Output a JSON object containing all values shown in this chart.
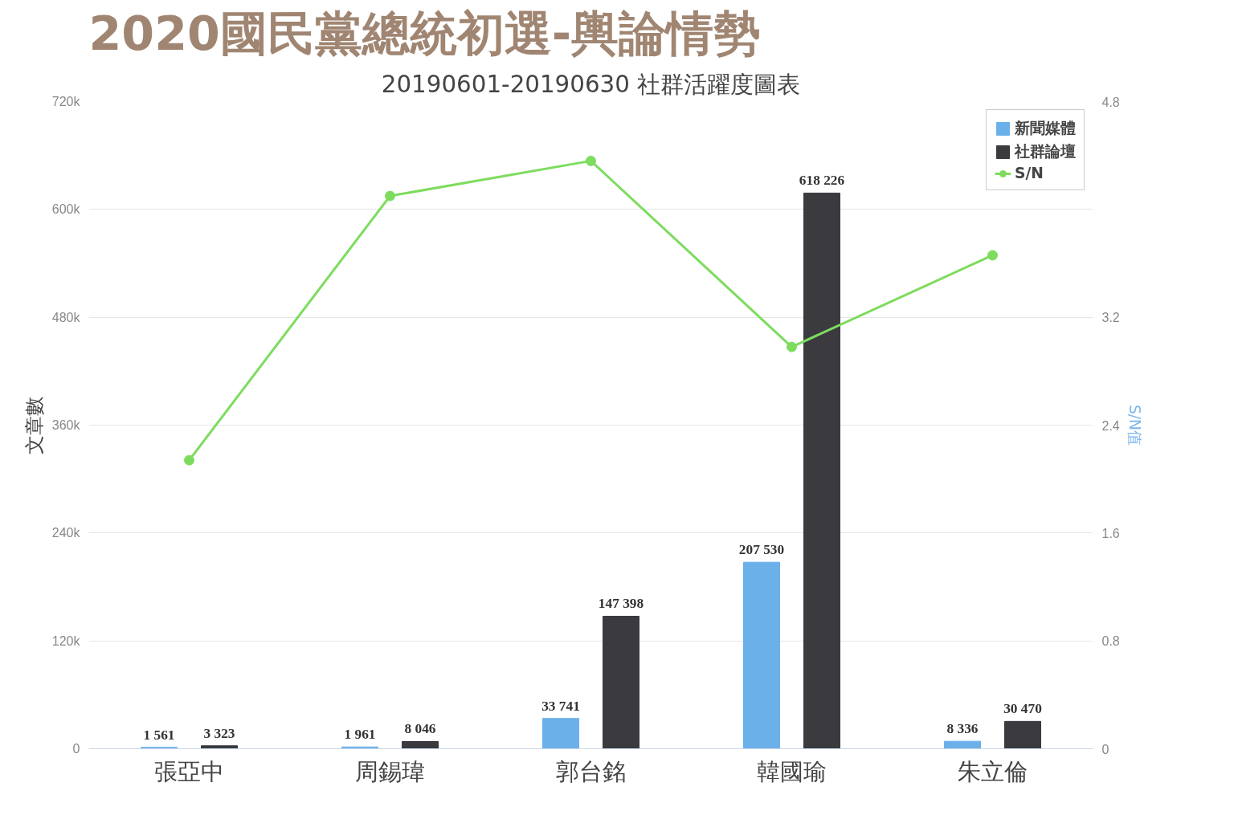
{
  "chart_data": {
    "type": "bar",
    "title": "2020國民黨總統初選-輿論情勢",
    "subtitle": "20190601-20190630 社群活躍度圖表",
    "ylabel": "文章數",
    "y2label": "S/N值",
    "categories": [
      "張亞中",
      "周錫瑋",
      "郭台銘",
      "韓國瑜",
      "朱立倫"
    ],
    "series": [
      {
        "name": "新聞媒體",
        "color": "#6cb0ea",
        "values": [
          1561,
          1961,
          33741,
          207530,
          8336
        ],
        "value_labels": [
          "1 561",
          "1 961",
          "33 741",
          "207 530",
          "8 336"
        ]
      },
      {
        "name": "社群論壇",
        "color": "#3a3a3f",
        "values": [
          3323,
          8046,
          147398,
          618226,
          30470
        ],
        "value_labels": [
          "3 323",
          "8 046",
          "147 398",
          "618 226",
          "30 470"
        ]
      },
      {
        "name": "S/N",
        "type": "line",
        "axis": "y2",
        "color": "#7ddc5e",
        "values": [
          2.14,
          4.1,
          4.36,
          2.98,
          3.66
        ]
      }
    ],
    "ylim": [
      0,
      720000
    ],
    "yticks": [
      {
        "value": 0,
        "label": "0"
      },
      {
        "value": 120000,
        "label": "120k"
      },
      {
        "value": 240000,
        "label": "240k"
      },
      {
        "value": 360000,
        "label": "360k"
      },
      {
        "value": 480000,
        "label": "480k"
      },
      {
        "value": 600000,
        "label": "600k"
      },
      {
        "value": 720000,
        "label": "720k"
      }
    ],
    "y2lim": [
      0,
      4.8
    ],
    "y2ticks": [
      0,
      0.8,
      1.6,
      2.4,
      3.2,
      4.8
    ],
    "grid": "y",
    "legend": "top right",
    "marker": "circle",
    "line_style": "solid"
  }
}
